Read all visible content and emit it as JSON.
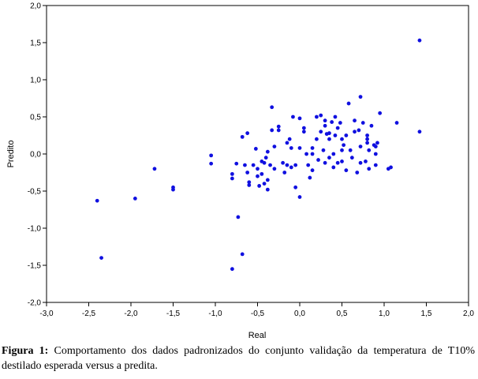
{
  "chart_data": {
    "type": "scatter",
    "xlabel": "Real",
    "ylabel": "Predito",
    "xlim": [
      -3.0,
      2.0
    ],
    "ylim": [
      -2.0,
      2.0
    ],
    "x_ticks": [
      "-3,0",
      "-2,5",
      "-2,0",
      "-1,5",
      "-1,0",
      "-0,5",
      "0,0",
      "0,5",
      "1,0",
      "1,5",
      "2,0"
    ],
    "y_ticks": [
      "2,0",
      "1,5",
      "1,0",
      "0,5",
      "0,0",
      "-0,5",
      "-1,0",
      "-1,5",
      "-2,0"
    ],
    "grid": false,
    "color": "#1010e0",
    "points": [
      [
        -2.4,
        -0.63
      ],
      [
        -2.35,
        -1.4
      ],
      [
        -1.95,
        -0.6
      ],
      [
        -1.72,
        -0.2
      ],
      [
        -1.5,
        -0.45
      ],
      [
        -1.5,
        -0.48
      ],
      [
        -1.05,
        -0.02
      ],
      [
        -1.05,
        -0.13
      ],
      [
        -0.8,
        -0.27
      ],
      [
        -0.8,
        -0.33
      ],
      [
        -0.8,
        -1.55
      ],
      [
        -0.75,
        -0.13
      ],
      [
        -0.73,
        -0.85
      ],
      [
        -0.68,
        -1.35
      ],
      [
        -0.68,
        0.23
      ],
      [
        -0.65,
        -0.15
      ],
      [
        -0.62,
        0.28
      ],
      [
        -0.62,
        -0.25
      ],
      [
        -0.6,
        -0.38
      ],
      [
        -0.6,
        -0.42
      ],
      [
        -0.55,
        -0.15
      ],
      [
        -0.52,
        0.07
      ],
      [
        -0.5,
        -0.2
      ],
      [
        -0.5,
        -0.3
      ],
      [
        -0.48,
        -0.43
      ],
      [
        -0.45,
        -0.1
      ],
      [
        -0.45,
        -0.27
      ],
      [
        -0.42,
        -0.4
      ],
      [
        -0.42,
        -0.12
      ],
      [
        -0.4,
        -0.05
      ],
      [
        -0.38,
        -0.35
      ],
      [
        -0.38,
        -0.48
      ],
      [
        -0.38,
        0.03
      ],
      [
        -0.35,
        -0.15
      ],
      [
        -0.33,
        0.32
      ],
      [
        -0.33,
        0.63
      ],
      [
        -0.3,
        0.1
      ],
      [
        -0.3,
        -0.2
      ],
      [
        -0.25,
        0.37
      ],
      [
        -0.25,
        0.32
      ],
      [
        -0.2,
        -0.12
      ],
      [
        -0.18,
        -0.25
      ],
      [
        -0.15,
        0.15
      ],
      [
        -0.15,
        -0.15
      ],
      [
        -0.12,
        0.2
      ],
      [
        -0.1,
        0.08
      ],
      [
        -0.1,
        -0.18
      ],
      [
        -0.08,
        0.5
      ],
      [
        -0.05,
        -0.45
      ],
      [
        -0.05,
        -0.15
      ],
      [
        0.0,
        0.08
      ],
      [
        0.0,
        -0.58
      ],
      [
        0.0,
        0.48
      ],
      [
        0.05,
        0.3
      ],
      [
        0.05,
        0.35
      ],
      [
        0.08,
        0.0
      ],
      [
        0.1,
        -0.15
      ],
      [
        0.12,
        -0.32
      ],
      [
        0.15,
        0.08
      ],
      [
        0.15,
        0.0
      ],
      [
        0.15,
        -0.22
      ],
      [
        0.2,
        0.5
      ],
      [
        0.2,
        0.2
      ],
      [
        0.22,
        -0.08
      ],
      [
        0.25,
        0.52
      ],
      [
        0.25,
        0.3
      ],
      [
        0.28,
        0.05
      ],
      [
        0.3,
        0.38
      ],
      [
        0.3,
        0.45
      ],
      [
        0.3,
        -0.12
      ],
      [
        0.32,
        0.27
      ],
      [
        0.35,
        0.28
      ],
      [
        0.35,
        0.2
      ],
      [
        0.35,
        -0.05
      ],
      [
        0.38,
        0.43
      ],
      [
        0.4,
        0.0
      ],
      [
        0.4,
        -0.18
      ],
      [
        0.42,
        0.25
      ],
      [
        0.42,
        0.5
      ],
      [
        0.45,
        0.35
      ],
      [
        0.45,
        -0.12
      ],
      [
        0.48,
        0.42
      ],
      [
        0.5,
        0.05
      ],
      [
        0.5,
        0.2
      ],
      [
        0.5,
        -0.1
      ],
      [
        0.52,
        0.12
      ],
      [
        0.55,
        0.25
      ],
      [
        0.55,
        -0.22
      ],
      [
        0.58,
        0.68
      ],
      [
        0.6,
        0.05
      ],
      [
        0.62,
        -0.05
      ],
      [
        0.65,
        0.45
      ],
      [
        0.65,
        0.3
      ],
      [
        0.68,
        -0.25
      ],
      [
        0.7,
        0.32
      ],
      [
        0.72,
        0.77
      ],
      [
        0.72,
        -0.12
      ],
      [
        0.72,
        0.1
      ],
      [
        0.75,
        0.42
      ],
      [
        0.78,
        -0.1
      ],
      [
        0.8,
        0.2
      ],
      [
        0.8,
        0.15
      ],
      [
        0.8,
        0.25
      ],
      [
        0.82,
        0.05
      ],
      [
        0.82,
        -0.2
      ],
      [
        0.85,
        0.38
      ],
      [
        0.88,
        0.12
      ],
      [
        0.9,
        0.1
      ],
      [
        0.9,
        0.0
      ],
      [
        0.9,
        -0.15
      ],
      [
        0.92,
        0.15
      ],
      [
        0.95,
        0.55
      ],
      [
        1.05,
        -0.2
      ],
      [
        1.08,
        -0.18
      ],
      [
        1.15,
        0.42
      ],
      [
        1.42,
        1.53
      ],
      [
        1.42,
        0.3
      ]
    ]
  },
  "caption": {
    "label": "Figura 1:",
    "text": " Comportamento dos dados padronizados do conjunto validação da temperatura de T10% destilado esperada versus a predita."
  }
}
